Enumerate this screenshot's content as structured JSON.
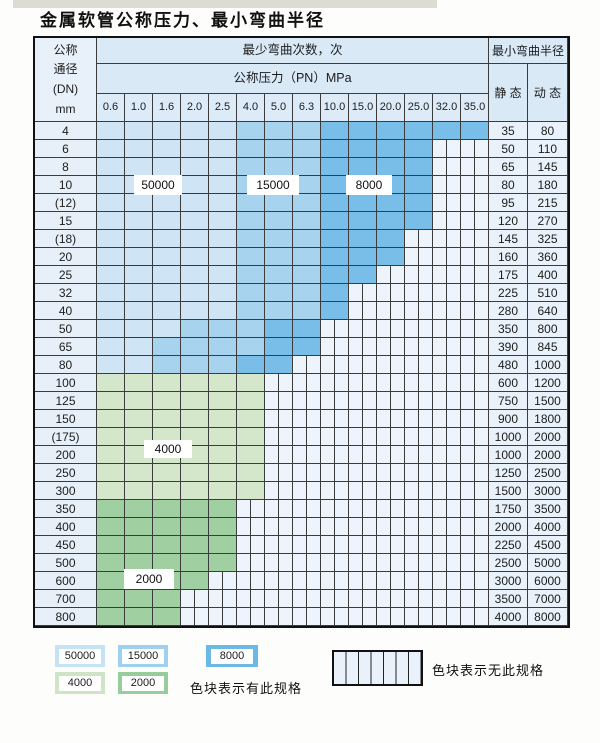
{
  "title": "金属软管公称压力、最小弯曲半径",
  "table": {
    "header": {
      "dn_lines": [
        "公称",
        "通径",
        "(DN)",
        "mm"
      ],
      "bend_cycles": "最少弯曲次数，次",
      "pressure": "公称压力（PN）MPa",
      "min_bend_radius": "最小弯曲半径",
      "static": "静 态",
      "dynamic": "动 态",
      "pressure_cols": [
        "0.6",
        "1.0",
        "1.6",
        "2.0",
        "2.5",
        "4.0",
        "5.0",
        "6.3",
        "10.0",
        "15.0",
        "20.0",
        "25.0",
        "32.0",
        "35.0"
      ]
    },
    "cell_code_legend": {
      "L": "50000次",
      "M": "15000次",
      "D": "8000次",
      "G": "4000次",
      "g": "2000次",
      "x": "无此规格"
    },
    "rows": [
      {
        "dn": "4",
        "cells": "LLLLLMMMDDDDDD",
        "static": "35",
        "dynamic": "80"
      },
      {
        "dn": "6",
        "cells": "LLLLLMMMDDDDxx",
        "static": "50",
        "dynamic": "110"
      },
      {
        "dn": "8",
        "cells": "LLLLLMMMDDDDxx",
        "static": "65",
        "dynamic": "145"
      },
      {
        "dn": "10",
        "cells": "LLLLLMMMDDDDxx",
        "static": "80",
        "dynamic": "180"
      },
      {
        "dn": "(12)",
        "cells": "LLLLLMMMDDDDxx",
        "static": "95",
        "dynamic": "215"
      },
      {
        "dn": "15",
        "cells": "LLLLLMMMDDDDxx",
        "static": "120",
        "dynamic": "270"
      },
      {
        "dn": "(18)",
        "cells": "LLLLLMMMDDDxxx",
        "static": "145",
        "dynamic": "325"
      },
      {
        "dn": "20",
        "cells": "LLLLLMMMDDDxxx",
        "static": "160",
        "dynamic": "360"
      },
      {
        "dn": "25",
        "cells": "LLLLLMMMDDxxxx",
        "static": "175",
        "dynamic": "400"
      },
      {
        "dn": "32",
        "cells": "LLLLLMMMDxxxxx",
        "static": "225",
        "dynamic": "510"
      },
      {
        "dn": "40",
        "cells": "LLLLLMMMDxxxxx",
        "static": "280",
        "dynamic": "640"
      },
      {
        "dn": "50",
        "cells": "LLLMMMDDxxxxxx",
        "static": "350",
        "dynamic": "800"
      },
      {
        "dn": "65",
        "cells": "LLMMMMDDxxxxxx",
        "static": "390",
        "dynamic": "845"
      },
      {
        "dn": "80",
        "cells": "LLMMMDDxxxxxxx",
        "static": "480",
        "dynamic": "1000"
      },
      {
        "dn": "100",
        "cells": "GGGGGGxxxxxxxx",
        "static": "600",
        "dynamic": "1200"
      },
      {
        "dn": "125",
        "cells": "GGGGGGxxxxxxxx",
        "static": "750",
        "dynamic": "1500"
      },
      {
        "dn": "150",
        "cells": "GGGGGGxxxxxxxx",
        "static": "900",
        "dynamic": "1800"
      },
      {
        "dn": "(175)",
        "cells": "GGGGGGxxxxxxxx",
        "static": "1000",
        "dynamic": "2000"
      },
      {
        "dn": "200",
        "cells": "GGGGGGxxxxxxxx",
        "static": "1000",
        "dynamic": "2000"
      },
      {
        "dn": "250",
        "cells": "GGGGGGxxxxxxxx",
        "static": "1250",
        "dynamic": "2500"
      },
      {
        "dn": "300",
        "cells": "GGGGGGxxxxxxxx",
        "static": "1500",
        "dynamic": "3000"
      },
      {
        "dn": "350",
        "cells": "gggggxxxxxxxxx",
        "static": "1750",
        "dynamic": "3500"
      },
      {
        "dn": "400",
        "cells": "gggggxxxxxxxxx",
        "static": "2000",
        "dynamic": "4000"
      },
      {
        "dn": "450",
        "cells": "gggggxxxxxxxxx",
        "static": "2250",
        "dynamic": "4500"
      },
      {
        "dn": "500",
        "cells": "gggggxxxxxxxxx",
        "static": "2500",
        "dynamic": "5000"
      },
      {
        "dn": "600",
        "cells": "ggggxxxxxxxxxx",
        "static": "3000",
        "dynamic": "6000"
      },
      {
        "dn": "700",
        "cells": "gggxxxxxxxxxxx",
        "static": "3500",
        "dynamic": "7000"
      },
      {
        "dn": "800",
        "cells": "gggxxxxxxxxxxx",
        "static": "4000",
        "dynamic": "8000"
      }
    ],
    "overlays": [
      {
        "text": "50000"
      },
      {
        "text": "15000"
      },
      {
        "text": "8000"
      },
      {
        "text": "4000"
      },
      {
        "text": "2000"
      }
    ]
  },
  "legend": {
    "swatches": [
      {
        "text": "50000",
        "color": "#c6e2f5"
      },
      {
        "text": "15000",
        "color": "#9fd0ee"
      },
      {
        "text": "8000",
        "color": "#6cb9e5"
      },
      {
        "text": "4000",
        "color": "#cfe4c6"
      },
      {
        "text": "2000",
        "color": "#97cd9d"
      }
    ],
    "has_spec_text": "色块表示有此规格",
    "no_spec_text": "色块表示无此规格"
  },
  "colors": {
    "blue_50000": "#cfe5f5",
    "blue_15000": "#a8d3ef",
    "blue_8000": "#79bee8",
    "green_4000": "#d4e7cb",
    "green_2000": "#a0d0a1",
    "hatch_bg": "#edf4fb",
    "header_bg": "#d9e9f6",
    "grid_line": "#3c3c3c"
  }
}
